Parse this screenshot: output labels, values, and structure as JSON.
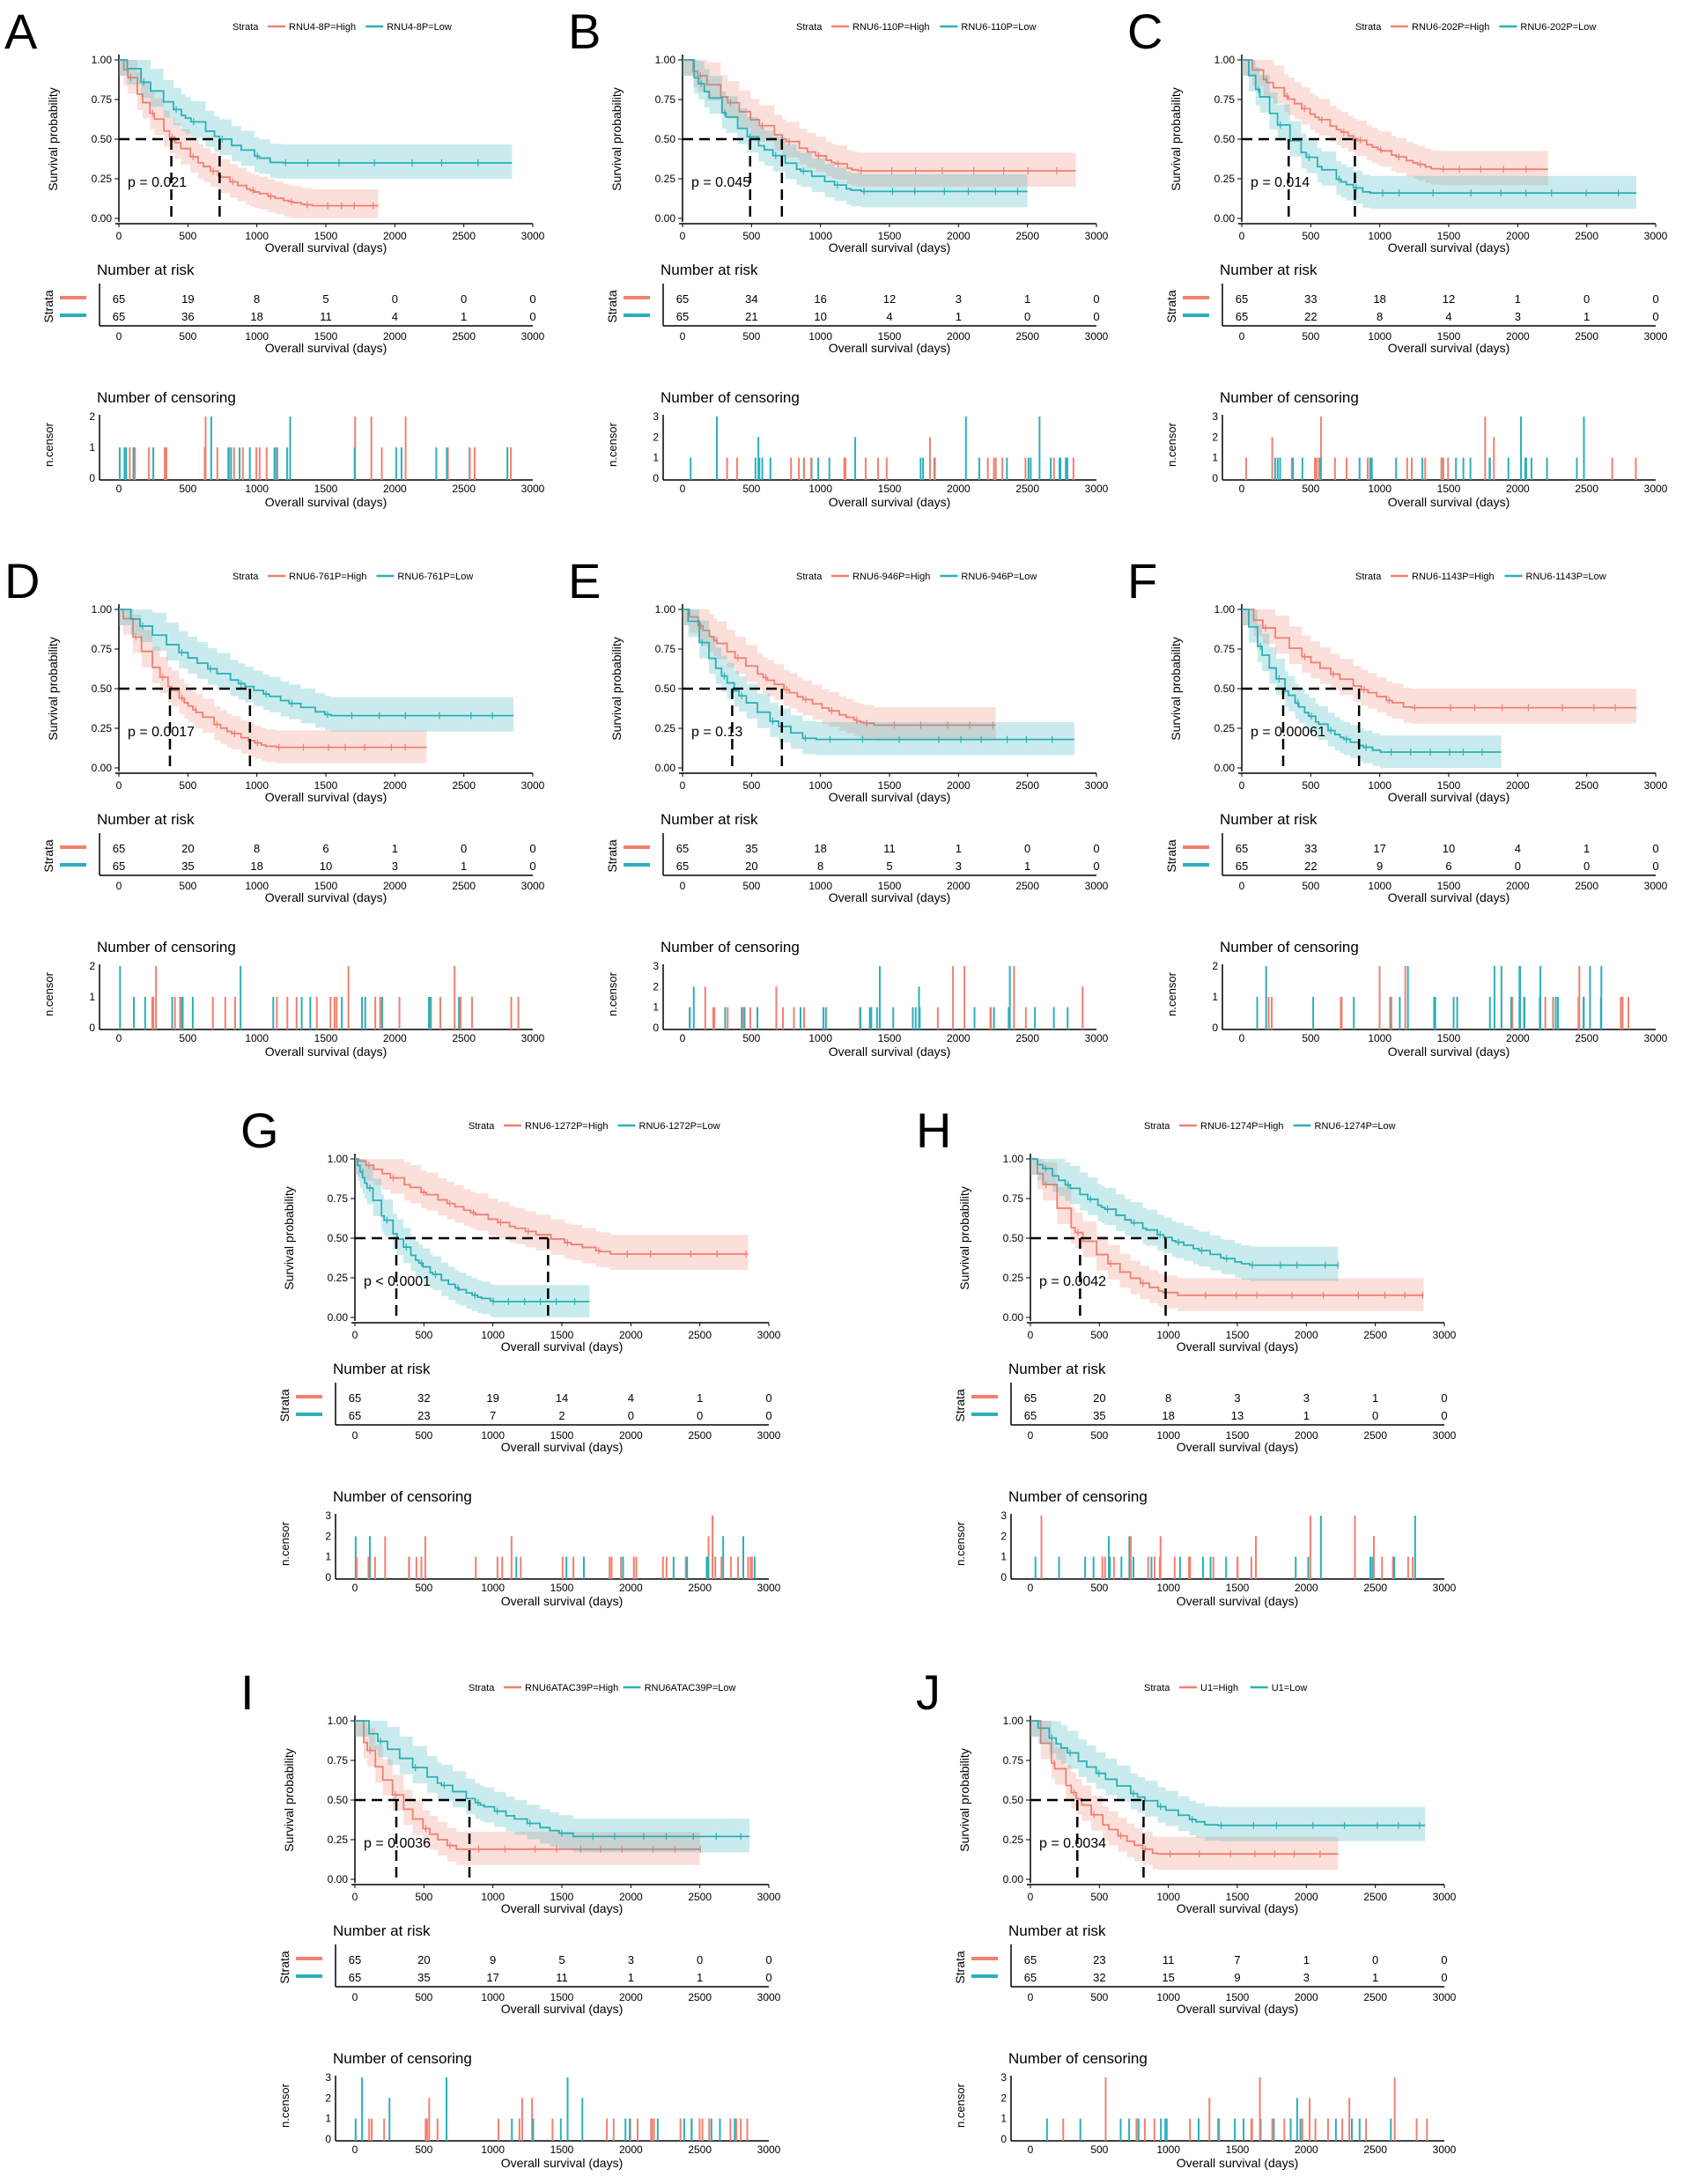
{
  "figure": {
    "common": {
      "y_label": "Survival probability",
      "x_label": "Overall survival (days)",
      "risk_title": "Number at risk",
      "strata_title": "Strata",
      "censor_title": "Number of censoring",
      "censor_ylabel": "n.censor",
      "x_ticks": [
        "0",
        "500",
        "1000",
        "1500",
        "2000",
        "2500",
        "3000"
      ],
      "y_ticks": [
        "0.00",
        "0.25",
        "0.50",
        "0.75",
        "1.00"
      ],
      "high_color": "#f08070",
      "low_color": "#2bb0b8"
    }
  },
  "chart_data": [
    {
      "type": "line",
      "panel_letter": "A",
      "legend_title": "Strata",
      "high_label": "RNU4-8P=High",
      "low_label": "RNU4-8P=Low",
      "pvalue": "p = 0.021",
      "median_high": 380,
      "median_low": 730,
      "max_high": 1880,
      "max_low": 2850,
      "end_high": 0.08,
      "end_low": 0.35,
      "risk_high": [
        "65",
        "19",
        "8",
        "5",
        "0",
        "0",
        "0"
      ],
      "risk_low": [
        "65",
        "36",
        "18",
        "11",
        "4",
        "1",
        "0"
      ],
      "censor_max": 2,
      "censor_ticks": [
        "0",
        "1",
        "2"
      ]
    },
    {
      "type": "line",
      "panel_letter": "B",
      "legend_title": "Strata",
      "high_label": "RNU6-110P=High",
      "low_label": "RNU6-110P=Low",
      "pvalue": "p = 0.045",
      "median_high": 720,
      "median_low": 490,
      "max_high": 2850,
      "max_low": 2500,
      "end_high": 0.3,
      "end_low": 0.17,
      "risk_high": [
        "65",
        "34",
        "16",
        "12",
        "3",
        "1",
        "0"
      ],
      "risk_low": [
        "65",
        "21",
        "10",
        "4",
        "1",
        "0",
        "0"
      ],
      "censor_max": 3,
      "censor_ticks": [
        "0",
        "1",
        "2",
        "3"
      ]
    },
    {
      "type": "line",
      "panel_letter": "C",
      "legend_title": "Strata",
      "high_label": "RNU6-202P=High",
      "low_label": "RNU6-202P=Low",
      "pvalue": "p = 0.014",
      "median_high": 820,
      "median_low": 340,
      "max_high": 2220,
      "max_low": 2860,
      "end_high": 0.31,
      "end_low": 0.16,
      "risk_high": [
        "65",
        "33",
        "18",
        "12",
        "1",
        "0",
        "0"
      ],
      "risk_low": [
        "65",
        "22",
        "8",
        "4",
        "3",
        "1",
        "0"
      ],
      "censor_max": 3,
      "censor_ticks": [
        "0",
        "1",
        "2",
        "3"
      ]
    },
    {
      "type": "line",
      "panel_letter": "D",
      "legend_title": "Strata",
      "high_label": "RNU6-761P=High",
      "low_label": "RNU6-761P=Low",
      "pvalue": "p = 0.0017",
      "median_high": 370,
      "median_low": 950,
      "max_high": 2230,
      "max_low": 2860,
      "end_high": 0.13,
      "end_low": 0.33,
      "risk_high": [
        "65",
        "20",
        "8",
        "6",
        "1",
        "0",
        "0"
      ],
      "risk_low": [
        "65",
        "35",
        "18",
        "10",
        "3",
        "1",
        "0"
      ],
      "censor_max": 2,
      "censor_ticks": [
        "0",
        "1",
        "2"
      ]
    },
    {
      "type": "line",
      "panel_letter": "E",
      "legend_title": "Strata",
      "high_label": "RNU6-946P=High",
      "low_label": "RNU6-946P=Low",
      "pvalue": "p = 0.13",
      "median_high": 720,
      "median_low": 360,
      "max_high": 2270,
      "max_low": 2840,
      "end_high": 0.27,
      "end_low": 0.18,
      "risk_high": [
        "65",
        "35",
        "18",
        "11",
        "1",
        "0",
        "0"
      ],
      "risk_low": [
        "65",
        "20",
        "8",
        "5",
        "3",
        "1",
        "0"
      ],
      "censor_max": 3,
      "censor_ticks": [
        "0",
        "1",
        "2",
        "3"
      ]
    },
    {
      "type": "line",
      "panel_letter": "F",
      "legend_title": "Strata",
      "high_label": "RNU6-1143P=High",
      "low_label": "RNU6-1143P=Low",
      "pvalue": "p = 0.00061",
      "median_high": 850,
      "median_low": 300,
      "max_high": 2860,
      "max_low": 1880,
      "end_high": 0.38,
      "end_low": 0.1,
      "risk_high": [
        "65",
        "33",
        "17",
        "10",
        "4",
        "1",
        "0"
      ],
      "risk_low": [
        "65",
        "22",
        "9",
        "6",
        "0",
        "0",
        "0"
      ],
      "censor_max": 2,
      "censor_ticks": [
        "0",
        "1",
        "2"
      ]
    },
    {
      "type": "line",
      "panel_letter": "G",
      "legend_title": "Strata",
      "high_label": "RNU6-1272P=High",
      "low_label": "RNU6-1272P=Low",
      "pvalue": "p < 0.0001",
      "median_high": 1400,
      "median_low": 300,
      "max_high": 2850,
      "max_low": 1700,
      "end_high": 0.4,
      "end_low": 0.1,
      "risk_high": [
        "65",
        "32",
        "19",
        "14",
        "4",
        "1",
        "0"
      ],
      "risk_low": [
        "65",
        "23",
        "7",
        "2",
        "0",
        "0",
        "0"
      ],
      "censor_max": 3,
      "censor_ticks": [
        "0",
        "1",
        "2",
        "3"
      ]
    },
    {
      "type": "line",
      "panel_letter": "H",
      "legend_title": "Strata",
      "high_label": "RNU6-1274P=High",
      "low_label": "RNU6-1274P=Low",
      "pvalue": "p = 0.0042",
      "median_high": 360,
      "median_low": 980,
      "max_high": 2850,
      "max_low": 2230,
      "end_high": 0.14,
      "end_low": 0.33,
      "risk_high": [
        "65",
        "20",
        "8",
        "3",
        "3",
        "1",
        "0"
      ],
      "risk_low": [
        "65",
        "35",
        "18",
        "13",
        "1",
        "0",
        "0"
      ],
      "censor_max": 3,
      "censor_ticks": [
        "0",
        "1",
        "2",
        "3"
      ]
    },
    {
      "type": "line",
      "panel_letter": "I",
      "legend_title": "Strata",
      "high_label": "RNU6ATAC39P=High",
      "low_label": "RNU6ATAC39P=Low",
      "pvalue": "p = 0.0036",
      "median_high": 300,
      "median_low": 830,
      "max_high": 2500,
      "max_low": 2860,
      "end_high": 0.19,
      "end_low": 0.27,
      "risk_high": [
        "65",
        "20",
        "9",
        "5",
        "3",
        "0",
        "0"
      ],
      "risk_low": [
        "65",
        "35",
        "17",
        "11",
        "1",
        "1",
        "0"
      ],
      "censor_max": 3,
      "censor_ticks": [
        "0",
        "1",
        "2",
        "3"
      ]
    },
    {
      "type": "line",
      "panel_letter": "J",
      "legend_title": "Strata",
      "high_label": "U1=High",
      "low_label": "U1=Low",
      "pvalue": "p = 0.0034",
      "median_high": 340,
      "median_low": 820,
      "max_high": 2230,
      "max_low": 2860,
      "end_high": 0.16,
      "end_low": 0.34,
      "risk_high": [
        "65",
        "23",
        "11",
        "7",
        "1",
        "0",
        "0"
      ],
      "risk_low": [
        "65",
        "32",
        "15",
        "9",
        "3",
        "1",
        "0"
      ],
      "censor_max": 3,
      "censor_ticks": [
        "0",
        "1",
        "2",
        "3"
      ]
    }
  ]
}
